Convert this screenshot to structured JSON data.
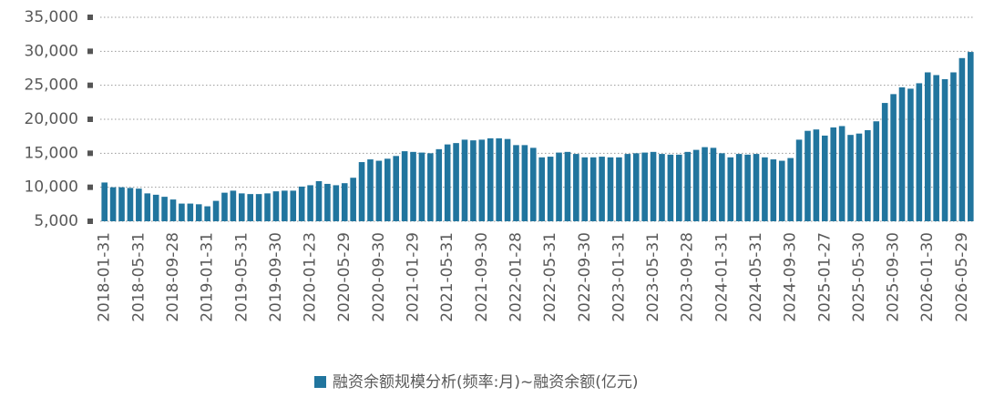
{
  "chart_data": {
    "type": "bar",
    "legend": "融资余额规模分析(频率:月)~融资余额(亿元)",
    "color": "#21759e",
    "ylim": [
      5000,
      35000
    ],
    "yticks": [
      {
        "value": 5000,
        "label": "5,000"
      },
      {
        "value": 10000,
        "label": "10,000"
      },
      {
        "value": 15000,
        "label": "15,000"
      },
      {
        "value": 20000,
        "label": "20,000"
      },
      {
        "value": 25000,
        "label": "25,000"
      },
      {
        "value": 30000,
        "label": "30,000"
      },
      {
        "value": 35000,
        "label": "35,000"
      }
    ],
    "grid": true,
    "categories": [
      "2018-01-31",
      null,
      null,
      null,
      "2018-05-31",
      null,
      null,
      null,
      "2018-09-28",
      null,
      null,
      null,
      "2019-01-31",
      null,
      null,
      null,
      "2019-05-31",
      null,
      null,
      null,
      "2019-09-30",
      null,
      null,
      null,
      "2020-01-23",
      null,
      null,
      null,
      "2020-05-29",
      null,
      null,
      null,
      "2020-09-30",
      null,
      null,
      null,
      "2021-01-29",
      null,
      null,
      null,
      "2021-05-31",
      null,
      null,
      null,
      "2021-09-30",
      null,
      null,
      null,
      "2022-01-28",
      null,
      null,
      null,
      "2022-05-31",
      null,
      null,
      null,
      "2022-09-30",
      null,
      null,
      null,
      "2023-01-31",
      null,
      null,
      null,
      "2023-05-31",
      null,
      null,
      null,
      "2023-09-28",
      null,
      null,
      null,
      "2024-01-31",
      null,
      null,
      null,
      "2024-05-31",
      null,
      null,
      null,
      "2024-09-30",
      null,
      null,
      null,
      "2025-01-27",
      null,
      null,
      null,
      "2025-05-30",
      null,
      null,
      null,
      "2025-09-30",
      null,
      null,
      null,
      "2026-01-30",
      null,
      null,
      null,
      "2026-05-29",
      null
    ],
    "values": [
      10700,
      10000,
      10000,
      9900,
      9800,
      9100,
      8900,
      8600,
      8200,
      7600,
      7600,
      7500,
      7200,
      8000,
      9200,
      9500,
      9100,
      9000,
      9000,
      9100,
      9400,
      9500,
      9500,
      10100,
      10300,
      10900,
      10500,
      10300,
      10600,
      11400,
      13700,
      14100,
      13900,
      14200,
      14600,
      15300,
      15200,
      15100,
      15000,
      15600,
      16300,
      16500,
      17000,
      16900,
      17000,
      17200,
      17200,
      17100,
      16200,
      16200,
      15800,
      14400,
      14500,
      15100,
      15200,
      14900,
      14400,
      14400,
      14500,
      14400,
      14400,
      14900,
      15000,
      15100,
      15200,
      14900,
      14800,
      14800,
      15200,
      15500,
      15900,
      15800,
      15000,
      14400,
      14900,
      14800,
      14900,
      14400,
      14100,
      13900,
      14300,
      17000,
      18300,
      18500,
      17600,
      18800,
      19000,
      17700,
      17900,
      18400,
      19700,
      22400,
      23700,
      24700,
      24500,
      25300,
      26900,
      26500,
      25900,
      26900,
      29000,
      29900
    ]
  }
}
